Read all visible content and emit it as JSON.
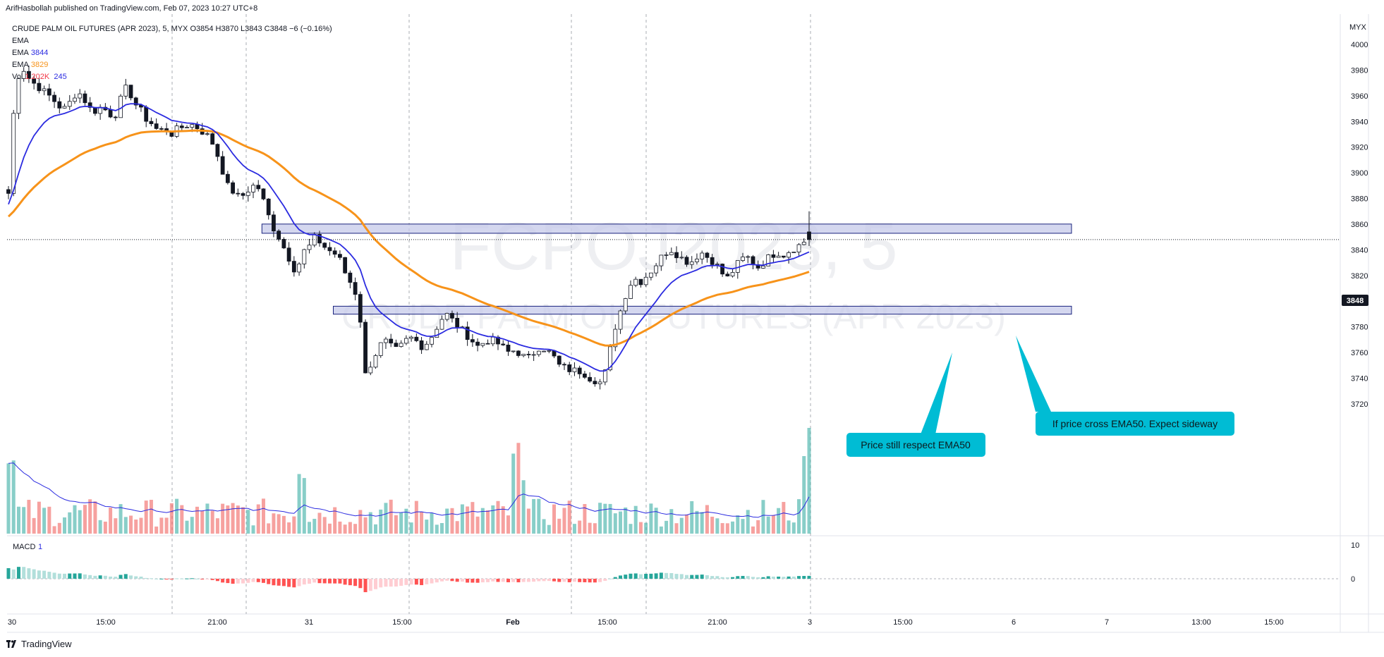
{
  "publisher_line": "ArifHasbollah published on TradingView.com, Feb 07, 2023 10:27 UTC+8",
  "legend": {
    "main": "CRUDE PALM OIL FUTURES (APR 2023), 5, MYX  O3854  H3870  L3843  C3848  −6 (−0.16%)",
    "ema_label_1": "EMA",
    "ema_label_2": "EMA",
    "ema_value_2": "3844",
    "ema_label_3": "EMA",
    "ema_value_3": "3829",
    "vol_label": "Vol",
    "vol_value_1": "1.202K",
    "vol_value_2": "245",
    "macd_label": "MACD",
    "macd_value": "1"
  },
  "watermark": {
    "symbol": "FCPOJ2023, 5",
    "name": "CRUDE PALM OIL FUTURES (APR 2023)"
  },
  "price_axis": {
    "unit": "MYX",
    "ticks": [
      4000,
      3980,
      3960,
      3940,
      3920,
      3900,
      3880,
      3860,
      3840,
      3820,
      3800,
      3780,
      3760,
      3740,
      3720
    ],
    "last_price": "3848"
  },
  "macd_axis": {
    "ticks": [
      "10",
      "0"
    ]
  },
  "time_axis": {
    "labels": [
      "30",
      "15:00",
      "21:00",
      "31",
      "15:00",
      "Feb",
      "15:00",
      "21:00",
      "3",
      "15:00",
      "6",
      "7",
      "13:00",
      "15:00"
    ]
  },
  "annotations": [
    {
      "text": "Price still respect EMA50"
    },
    {
      "text": "If price cross EMA50. Expect sideway"
    }
  ],
  "brand": "TradingView",
  "colors": {
    "ema_fast": "#2b2be0",
    "ema_slow": "#f7931a",
    "up": "#26a69a",
    "down": "#ef5350",
    "callout": "#00bcd4",
    "zone_fill": "#c5cae9",
    "zone_border": "#1a237e"
  },
  "chart_data": {
    "type": "candlestick",
    "title": "CRUDE PALM OIL FUTURES (APR 2023), 5, MYX",
    "ohlc_last": {
      "open": 3854,
      "high": 3870,
      "low": 3843,
      "close": 3848,
      "change": -6,
      "change_pct": -0.16
    },
    "ylim": [
      3705,
      4008
    ],
    "close_path": [
      3884,
      3960,
      3985,
      3975,
      3970,
      3966,
      3962,
      3958,
      3952,
      3950,
      3956,
      3964,
      3958,
      3950,
      3948,
      3952,
      3946,
      3944,
      3958,
      3968,
      3955,
      3950,
      3942,
      3938,
      3932,
      3935,
      3930,
      3934,
      3936,
      3938,
      3936,
      3932,
      3928,
      3920,
      3905,
      3890,
      3885,
      3880,
      3885,
      3890,
      3888,
      3875,
      3860,
      3852,
      3842,
      3832,
      3822,
      3838,
      3842,
      3850,
      3845,
      3840,
      3838,
      3832,
      3820,
      3812,
      3800,
      3742,
      3752,
      3762,
      3770,
      3765,
      3762,
      3766,
      3772,
      3770,
      3765,
      3768,
      3775,
      3785,
      3790,
      3785,
      3780,
      3775,
      3770,
      3765,
      3768,
      3770,
      3768,
      3764,
      3760,
      3762,
      3758,
      3755,
      3760,
      3765,
      3762,
      3758,
      3750,
      3748,
      3746,
      3746,
      3744,
      3740,
      3738,
      3736,
      3758,
      3780,
      3795,
      3810,
      3818,
      3815,
      3820,
      3825,
      3832,
      3838,
      3840,
      3836,
      3832,
      3830,
      3835,
      3838,
      3833,
      3830,
      3822,
      3818,
      3825,
      3832,
      3835,
      3830,
      3826,
      3832,
      3836,
      3838,
      3836,
      3840,
      3842,
      3846,
      3848
    ],
    "ema_fast_value": 3844,
    "ema_slow_value": 3829,
    "zones": [
      {
        "low": 3854,
        "high": 3859,
        "from_index": 58,
        "to_index": 157
      },
      {
        "low": 3791,
        "high": 3795,
        "from_index": 72,
        "to_index": 157
      }
    ],
    "volume_last": "1.202K",
    "volume_ma": "245",
    "macd_last": "1"
  }
}
